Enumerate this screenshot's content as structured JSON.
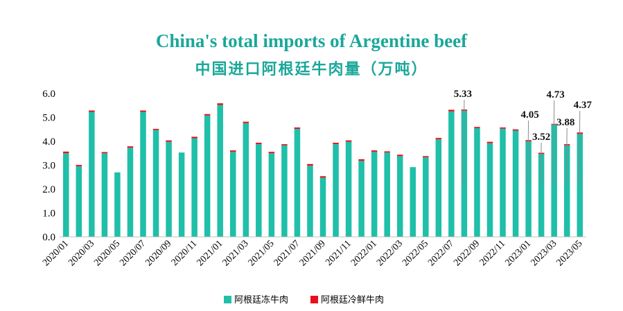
{
  "title_en": "China's total imports of Argentine beef",
  "title_cn": "中国进口阿根廷牛肉量（万吨）",
  "colors": {
    "frozen": "#1fbfa9",
    "chilled": "#e8101a",
    "title": "#1aa79a",
    "annotation_line": "#8a8a8a"
  },
  "chart_data": {
    "type": "bar",
    "stacked": true,
    "title": "China's total imports of Argentine beef",
    "subtitle": "中国进口阿根廷牛肉量（万吨）",
    "ylim": [
      0,
      6
    ],
    "yticks": [
      "0.0",
      "1.0",
      "2.0",
      "3.0",
      "4.0",
      "5.0",
      "6.0"
    ],
    "legend": "bottom",
    "grid": false,
    "categories": [
      "2020/01",
      "2020/02",
      "2020/03",
      "2020/04",
      "2020/05",
      "2020/06",
      "2020/07",
      "2020/08",
      "2020/09",
      "2020/10",
      "2020/11",
      "2020/12",
      "2021/01",
      "2021/02",
      "2021/03",
      "2021/04",
      "2021/05",
      "2021/06",
      "2021/07",
      "2021/08",
      "2021/09",
      "2021/10",
      "2021/11",
      "2021/12",
      "2022/01",
      "2022/02",
      "2022/03",
      "2022/04",
      "2022/05",
      "2022/06",
      "2022/07",
      "2022/08",
      "2022/09",
      "2022/10",
      "2022/11",
      "2022/12",
      "2023/01",
      "2023/02",
      "2023/03",
      "2023/04",
      "2023/05"
    ],
    "xtick_labels": [
      "2020/01",
      "2020/03",
      "2020/05",
      "2020/07",
      "2020/09",
      "2020/11",
      "2021/01",
      "2021/03",
      "2021/05",
      "2021/07",
      "2021/09",
      "2021/11",
      "2022/01",
      "2022/03",
      "2022/05",
      "2022/07",
      "2022/09",
      "2022/11",
      "2023/01",
      "2023/03",
      "2023/05"
    ],
    "series": [
      {
        "name": "阿根廷冻牛肉",
        "values": [
          3.5,
          2.95,
          5.23,
          3.5,
          2.7,
          3.73,
          5.23,
          4.47,
          3.98,
          3.53,
          4.13,
          5.08,
          5.52,
          3.56,
          4.76,
          3.88,
          3.5,
          3.83,
          4.52,
          2.98,
          2.48,
          3.88,
          3.98,
          3.18,
          3.56,
          3.53,
          3.38,
          2.92,
          3.33,
          4.08,
          5.25,
          5.28,
          4.55,
          3.92,
          4.53,
          4.45,
          4.0,
          3.47,
          4.7,
          3.83,
          4.31
        ]
      },
      {
        "name": "阿根廷冷鲜牛肉",
        "values": [
          0.07,
          0.06,
          0.06,
          0.05,
          0.0,
          0.06,
          0.06,
          0.05,
          0.06,
          0.0,
          0.06,
          0.06,
          0.07,
          0.06,
          0.06,
          0.06,
          0.06,
          0.05,
          0.06,
          0.07,
          0.06,
          0.06,
          0.06,
          0.07,
          0.06,
          0.05,
          0.06,
          0.0,
          0.05,
          0.06,
          0.07,
          0.05,
          0.05,
          0.06,
          0.05,
          0.05,
          0.05,
          0.05,
          0.03,
          0.05,
          0.06
        ]
      }
    ],
    "annotations": [
      {
        "category": "2022/08",
        "text": "5.33"
      },
      {
        "category": "2023/01",
        "text": "4.05"
      },
      {
        "category": "2023/02",
        "text": "3.52"
      },
      {
        "category": "2023/03",
        "text": "4.73"
      },
      {
        "category": "2023/04",
        "text": "3.88"
      },
      {
        "category": "2023/05",
        "text": "4.37"
      }
    ]
  }
}
